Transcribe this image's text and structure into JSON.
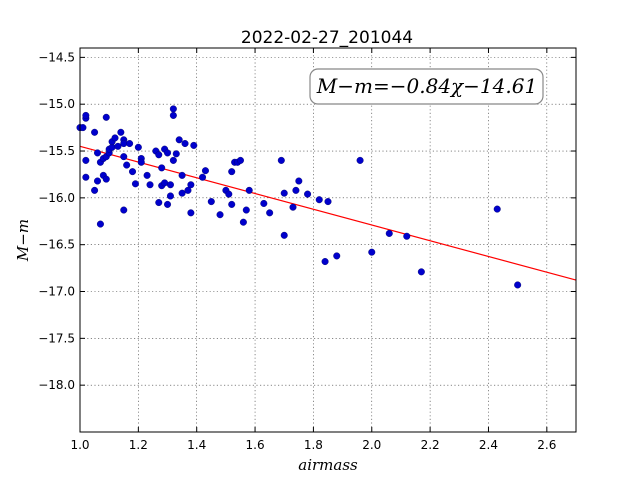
{
  "chart_data": {
    "type": "scatter",
    "title": "2022-02-27_201044",
    "xlabel": "airmass",
    "ylabel": "M−m",
    "xlim": [
      1.0,
      2.7
    ],
    "ylim": [
      -18.5,
      -14.4
    ],
    "y_inverted": true,
    "grid": true,
    "x_ticks": [
      "1.0",
      "1.2",
      "1.4",
      "1.6",
      "1.8",
      "2.0",
      "2.2",
      "2.4",
      "2.6"
    ],
    "y_ticks": [
      "−14.5",
      "−15.0",
      "−15.5",
      "−16.0",
      "−16.5",
      "−17.0",
      "−17.5",
      "−18.0"
    ],
    "annotation": "M−m=−0.84χ−14.61",
    "fit": {
      "slope": -0.84,
      "intercept": -14.61,
      "color": "#ff0000"
    },
    "point_color": "#0000cc",
    "points": [
      [
        1.0,
        -15.25
      ],
      [
        1.01,
        -15.25
      ],
      [
        1.02,
        -15.15
      ],
      [
        1.02,
        -15.12
      ],
      [
        1.02,
        -15.6
      ],
      [
        1.02,
        -15.78
      ],
      [
        1.05,
        -15.3
      ],
      [
        1.05,
        -15.92
      ],
      [
        1.06,
        -15.52
      ],
      [
        1.06,
        -15.82
      ],
      [
        1.07,
        -16.28
      ],
      [
        1.07,
        -15.62
      ],
      [
        1.08,
        -15.58
      ],
      [
        1.08,
        -15.76
      ],
      [
        1.09,
        -15.14
      ],
      [
        1.09,
        -15.56
      ],
      [
        1.09,
        -15.8
      ],
      [
        1.1,
        -15.52
      ],
      [
        1.1,
        -15.48
      ],
      [
        1.11,
        -15.46
      ],
      [
        1.11,
        -15.4
      ],
      [
        1.12,
        -15.36
      ],
      [
        1.13,
        -15.45
      ],
      [
        1.14,
        -15.3
      ],
      [
        1.15,
        -15.38
      ],
      [
        1.15,
        -15.56
      ],
      [
        1.15,
        -15.42
      ],
      [
        1.15,
        -16.13
      ],
      [
        1.16,
        -15.65
      ],
      [
        1.17,
        -15.42
      ],
      [
        1.18,
        -15.72
      ],
      [
        1.19,
        -15.85
      ],
      [
        1.2,
        -15.46
      ],
      [
        1.21,
        -15.58
      ],
      [
        1.21,
        -15.62
      ],
      [
        1.23,
        -15.76
      ],
      [
        1.24,
        -15.86
      ],
      [
        1.26,
        -15.5
      ],
      [
        1.27,
        -16.05
      ],
      [
        1.27,
        -15.54
      ],
      [
        1.28,
        -15.87
      ],
      [
        1.28,
        -15.68
      ],
      [
        1.29,
        -15.84
      ],
      [
        1.29,
        -15.48
      ],
      [
        1.3,
        -15.52
      ],
      [
        1.3,
        -16.07
      ],
      [
        1.31,
        -15.86
      ],
      [
        1.31,
        -15.98
      ],
      [
        1.32,
        -15.6
      ],
      [
        1.32,
        -15.05
      ],
      [
        1.32,
        -15.12
      ],
      [
        1.33,
        -15.53
      ],
      [
        1.34,
        -15.38
      ],
      [
        1.35,
        -15.76
      ],
      [
        1.35,
        -15.95
      ],
      [
        1.36,
        -15.42
      ],
      [
        1.37,
        -15.92
      ],
      [
        1.38,
        -16.16
      ],
      [
        1.38,
        -15.86
      ],
      [
        1.39,
        -15.44
      ],
      [
        1.42,
        -15.78
      ],
      [
        1.43,
        -15.71
      ],
      [
        1.45,
        -16.04
      ],
      [
        1.48,
        -16.18
      ],
      [
        1.5,
        -15.92
      ],
      [
        1.51,
        -15.96
      ],
      [
        1.52,
        -16.07
      ],
      [
        1.52,
        -15.72
      ],
      [
        1.53,
        -15.62
      ],
      [
        1.54,
        -15.62
      ],
      [
        1.55,
        -15.6
      ],
      [
        1.56,
        -16.26
      ],
      [
        1.57,
        -16.13
      ],
      [
        1.58,
        -15.92
      ],
      [
        1.63,
        -16.06
      ],
      [
        1.65,
        -16.16
      ],
      [
        1.69,
        -15.6
      ],
      [
        1.7,
        -15.95
      ],
      [
        1.7,
        -16.4
      ],
      [
        1.73,
        -16.1
      ],
      [
        1.74,
        -15.92
      ],
      [
        1.75,
        -15.82
      ],
      [
        1.78,
        -15.96
      ],
      [
        1.82,
        -16.02
      ],
      [
        1.84,
        -16.68
      ],
      [
        1.85,
        -16.04
      ],
      [
        1.88,
        -16.62
      ],
      [
        1.96,
        -15.6
      ],
      [
        2.0,
        -16.58
      ],
      [
        2.06,
        -16.38
      ],
      [
        2.12,
        -16.41
      ],
      [
        2.17,
        -16.79
      ],
      [
        2.43,
        -16.12
      ],
      [
        2.5,
        -16.93
      ]
    ]
  }
}
